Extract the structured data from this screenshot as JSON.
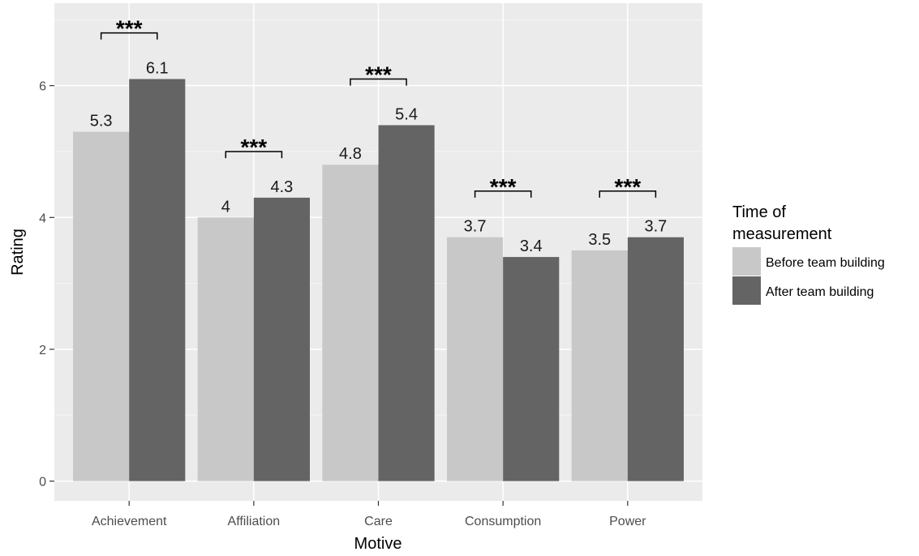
{
  "colors": {
    "panel_background": "#ebebeb",
    "grid_major": "#ffffff",
    "grid_minor": "#f5f5f5",
    "before": "#c8c8c8",
    "after": "#646464"
  },
  "chart_data": {
    "type": "bar",
    "title": "",
    "xlabel": "Motive",
    "ylabel": "Rating",
    "categories": [
      "Achievement",
      "Affiliation",
      "Care",
      "Consumption",
      "Power"
    ],
    "series": [
      {
        "name": "Before team building",
        "values": [
          5.3,
          4,
          4.8,
          3.7,
          3.5
        ],
        "labels": [
          "5.3",
          "4",
          "4.8",
          "3.7",
          "3.5"
        ],
        "color": "#c8c8c8"
      },
      {
        "name": "After team building",
        "values": [
          6.1,
          4.3,
          5.4,
          3.4,
          3.7
        ],
        "labels": [
          "6.1",
          "4.3",
          "5.4",
          "3.4",
          "3.7"
        ],
        "color": "#646464"
      }
    ],
    "ylim": [
      -0.3,
      7.25
    ],
    "yticks": [
      0,
      2,
      4,
      6
    ],
    "ytick_labels": [
      "0",
      "2",
      "4",
      "6"
    ],
    "significance": [
      {
        "category": "Achievement",
        "label": "***"
      },
      {
        "category": "Affiliation",
        "label": "***"
      },
      {
        "category": "Care",
        "label": "***"
      },
      {
        "category": "Consumption",
        "label": "***"
      },
      {
        "category": "Power",
        "label": "***"
      }
    ],
    "legend": {
      "title_line1": "Time of",
      "title_line2": "measurement",
      "position": "right"
    },
    "grid": true
  }
}
